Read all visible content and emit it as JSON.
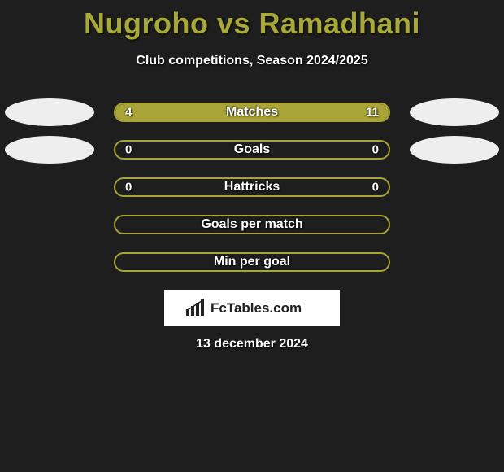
{
  "background_color": "#1e1e1e",
  "title": {
    "text": "Nugroho vs Ramadhani",
    "color": "#a9a93a",
    "fontsize": 36
  },
  "subtitle": {
    "text": "Club competitions, Season 2024/2025",
    "color": "#ffffff",
    "fontsize": 16
  },
  "bar_style": {
    "container_width": 340,
    "container_height": 24,
    "border_radius": 12,
    "border_color": "#a8a437",
    "fill_color": "#a8a437",
    "empty_color": "transparent",
    "label_color": "#ffffff",
    "label_fontsize": 16,
    "value_fontsize": 15
  },
  "avatars": {
    "left_color": "#eeeeee",
    "right_color": "#eeeeee",
    "width": 110,
    "height": 34
  },
  "rows": [
    {
      "label": "Matches",
      "left_value": "4",
      "right_value": "11",
      "left_pct": 27,
      "right_pct": 73,
      "show_avatar_left": true,
      "show_avatar_right": true
    },
    {
      "label": "Goals",
      "left_value": "0",
      "right_value": "0",
      "left_pct": 0,
      "right_pct": 0,
      "show_avatar_left": true,
      "show_avatar_right": true
    },
    {
      "label": "Hattricks",
      "left_value": "0",
      "right_value": "0",
      "left_pct": 0,
      "right_pct": 0,
      "show_avatar_left": false,
      "show_avatar_right": false
    },
    {
      "label": "Goals per match",
      "left_value": "",
      "right_value": "",
      "left_pct": 0,
      "right_pct": 0,
      "show_avatar_left": false,
      "show_avatar_right": false
    },
    {
      "label": "Min per goal",
      "left_value": "",
      "right_value": "",
      "left_pct": 0,
      "right_pct": 0,
      "show_avatar_left": false,
      "show_avatar_right": false
    }
  ],
  "logo": {
    "text": "FcTables.com",
    "background": "#ffffff",
    "text_color": "#222222",
    "icon_color": "#222222"
  },
  "date": {
    "text": "13 december 2024",
    "color": "#ffffff",
    "fontsize": 16
  }
}
